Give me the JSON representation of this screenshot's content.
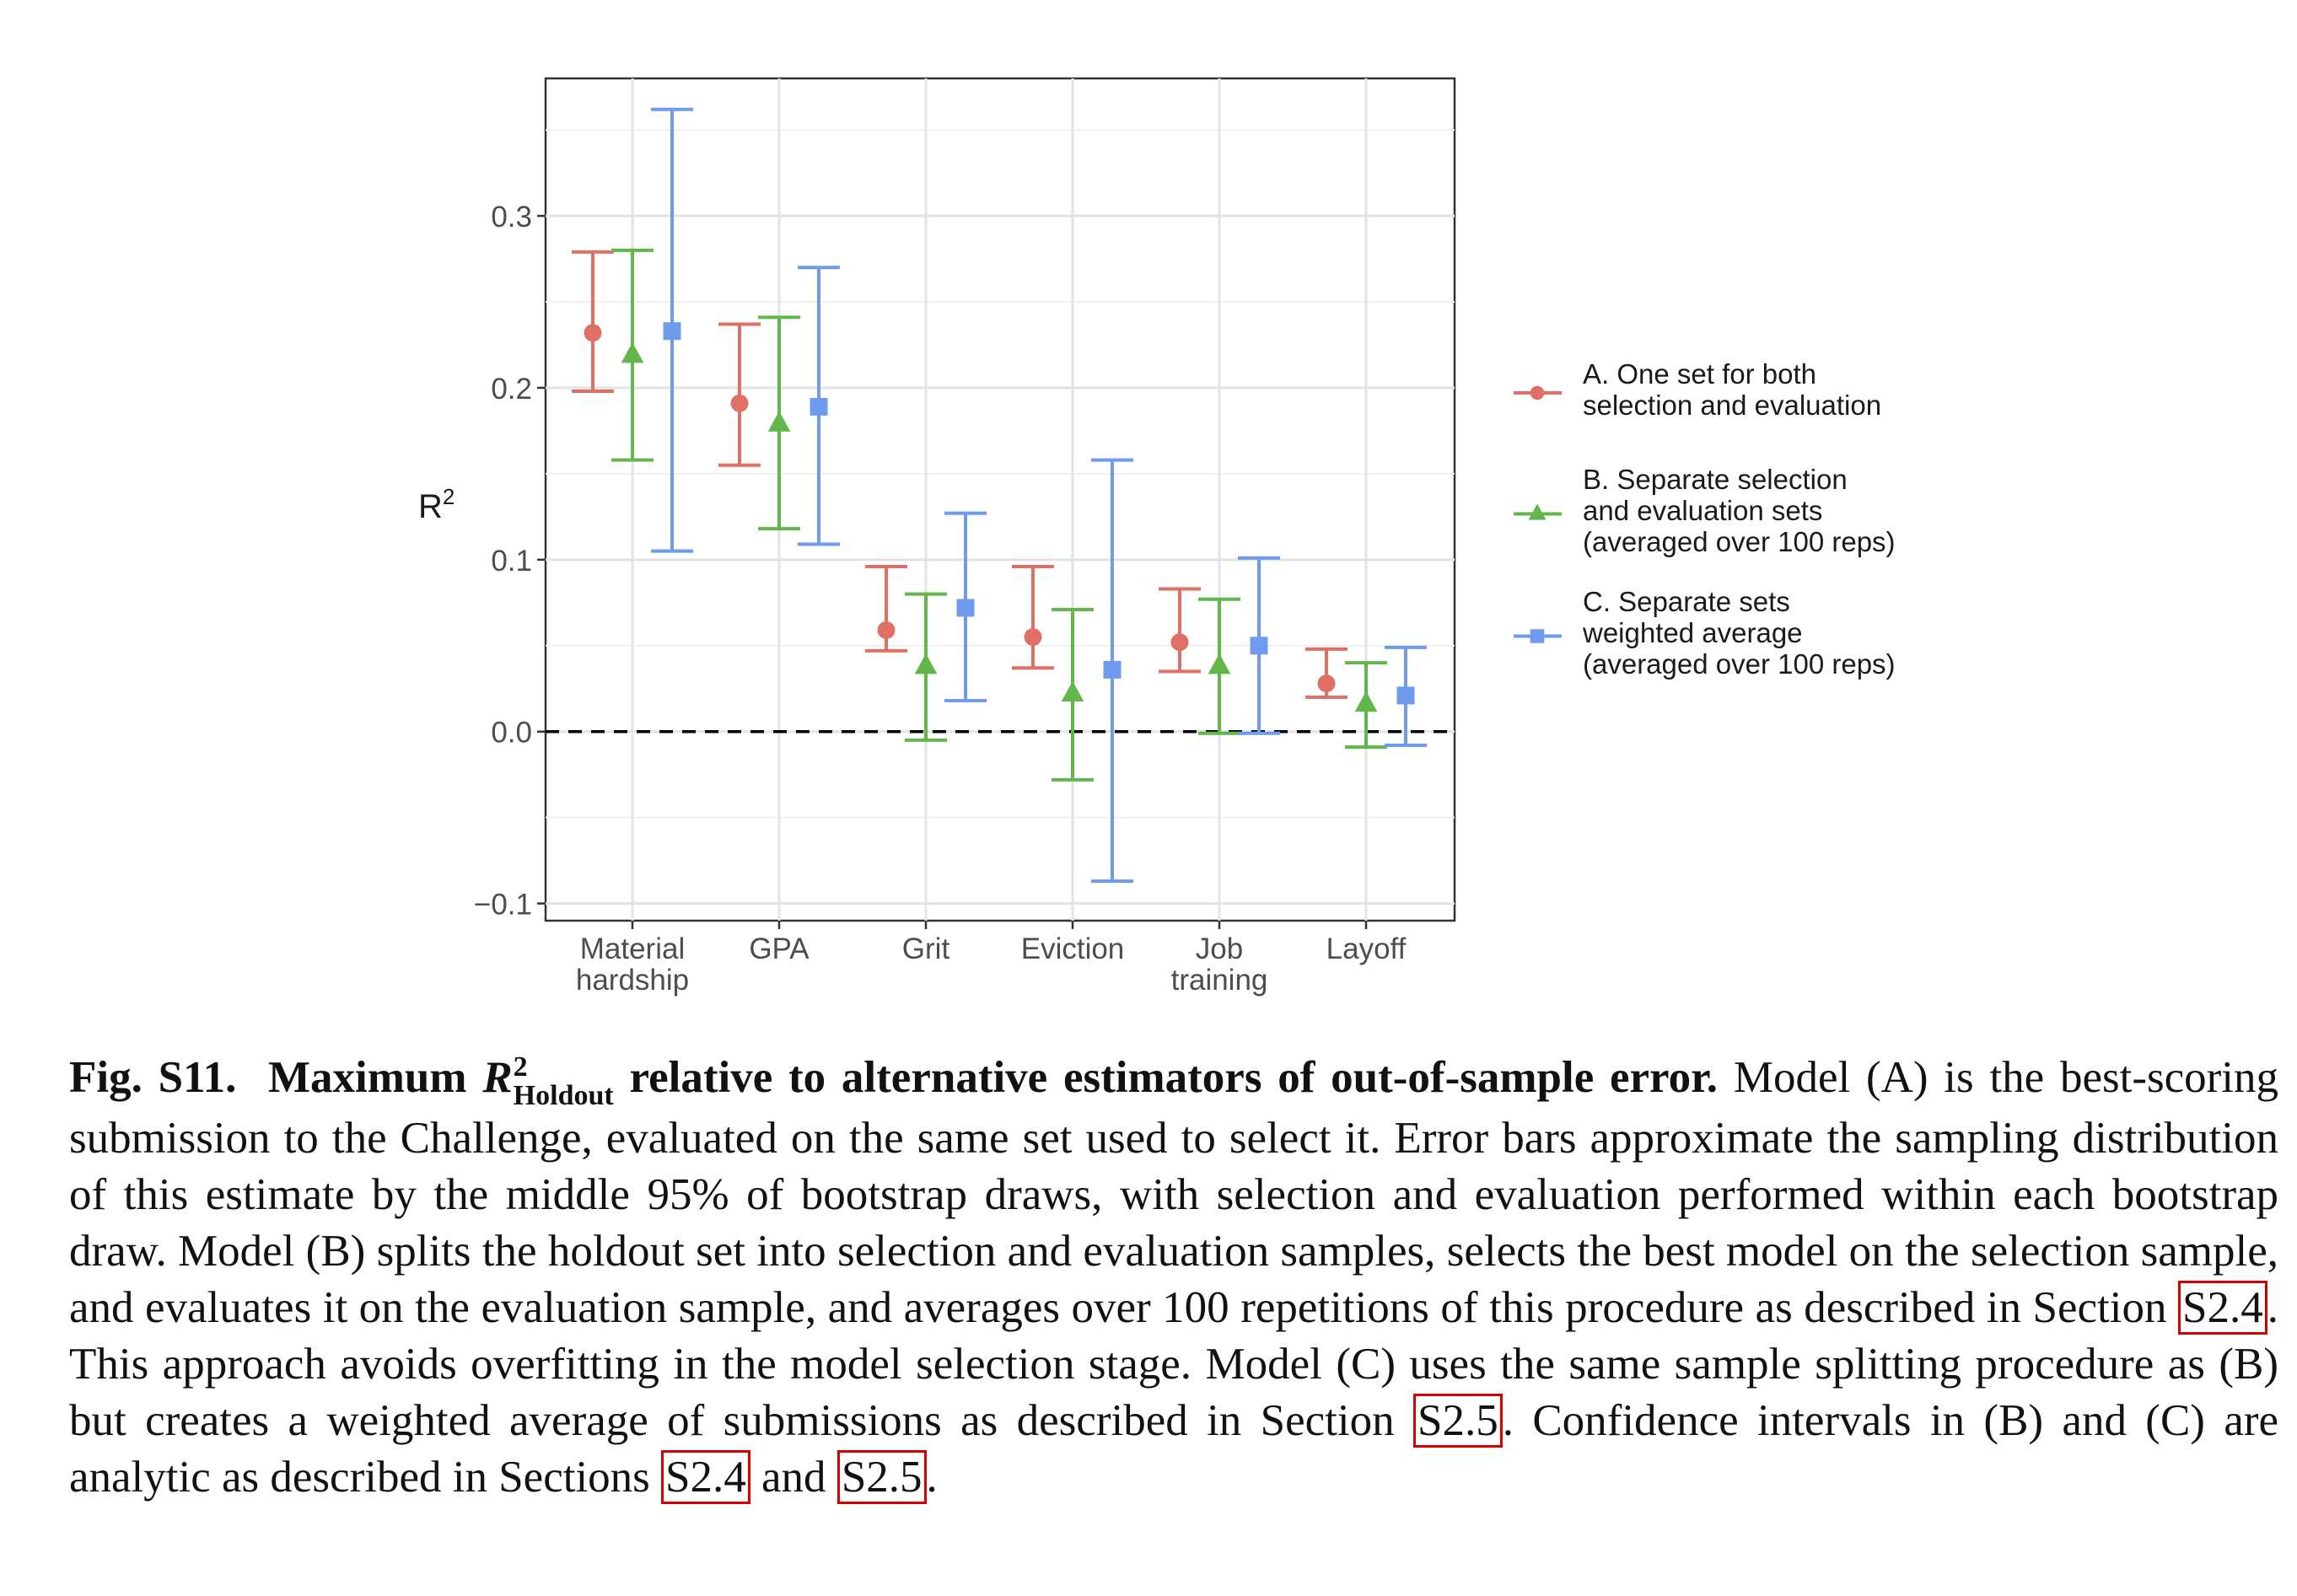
{
  "chart_data": {
    "type": "errorbar",
    "ylabel": "R²",
    "ylim": [
      -0.11,
      0.38
    ],
    "yticks": [
      -0.1,
      0.0,
      0.1,
      0.2,
      0.3
    ],
    "ytick_labels": [
      "−0.1",
      "0.0",
      "0.1",
      "0.2",
      "0.3"
    ],
    "reference_line": {
      "y": 0,
      "style": "dashed"
    },
    "grid": true,
    "legend_position": "right",
    "categories": [
      [
        "Material",
        "hardship"
      ],
      [
        "GPA"
      ],
      [
        "Grit"
      ],
      [
        "Eviction"
      ],
      [
        "Job",
        "training"
      ],
      [
        "Layoff"
      ]
    ],
    "series": [
      {
        "name_lines": [
          "A. One set for both",
          "selection and evaluation"
        ],
        "color": "#e06f66",
        "marker": "circle",
        "points": [
          {
            "y": 0.232,
            "lo": 0.198,
            "hi": 0.279
          },
          {
            "y": 0.191,
            "lo": 0.155,
            "hi": 0.237
          },
          {
            "y": 0.059,
            "lo": 0.047,
            "hi": 0.096
          },
          {
            "y": 0.055,
            "lo": 0.037,
            "hi": 0.096
          },
          {
            "y": 0.052,
            "lo": 0.035,
            "hi": 0.083
          },
          {
            "y": 0.028,
            "lo": 0.02,
            "hi": 0.048
          }
        ]
      },
      {
        "name_lines": [
          "B. Separate selection",
          "and evaluation sets",
          "(averaged over 100 reps)"
        ],
        "color": "#62b64a",
        "marker": "triangle",
        "points": [
          {
            "y": 0.219,
            "lo": 0.158,
            "hi": 0.28
          },
          {
            "y": 0.179,
            "lo": 0.118,
            "hi": 0.241
          },
          {
            "y": 0.038,
            "lo": -0.005,
            "hi": 0.08
          },
          {
            "y": 0.022,
            "lo": -0.028,
            "hi": 0.071
          },
          {
            "y": 0.038,
            "lo": -0.001,
            "hi": 0.077
          },
          {
            "y": 0.016,
            "lo": -0.009,
            "hi": 0.04
          }
        ]
      },
      {
        "name_lines": [
          "C. Separate sets",
          "weighted average",
          "(averaged over 100 reps)"
        ],
        "color": "#6f9bef",
        "marker": "square",
        "points": [
          {
            "y": 0.233,
            "lo": 0.105,
            "hi": 0.362
          },
          {
            "y": 0.189,
            "lo": 0.109,
            "hi": 0.27
          },
          {
            "y": 0.072,
            "lo": 0.018,
            "hi": 0.127
          },
          {
            "y": 0.036,
            "lo": -0.087,
            "hi": 0.158
          },
          {
            "y": 0.05,
            "lo": -0.001,
            "hi": 0.101
          },
          {
            "y": 0.021,
            "lo": -0.008,
            "hi": 0.049
          }
        ]
      }
    ]
  },
  "caption": {
    "figure_label": "Fig. S11.",
    "title_prefix": "Maximum",
    "title_symbol": "R",
    "title_sup": "2",
    "title_sub": "Holdout",
    "title_suffix": "relative to alternative estimators of out-of-sample error.",
    "body_1": "Model (A) is the best-scoring submission to the Challenge, evaluated on the same set used to select it. Error bars approximate the sampling distribution of this estimate by the middle 95% of bootstrap draws, with selection and evaluation performed within each bootstrap draw. Model (B) splits the holdout set into selection and evaluation samples, selects the best model on the selection sample, and evaluates it on the evaluation sample, and averages over 100 repetitions of this procedure as described in Section",
    "ref_1": "S2.4",
    "body_2": ". This approach avoids overfitting in the model selection stage. Model (C) uses the same sample splitting procedure as (B) but creates a weighted average of submissions as described in Section",
    "ref_2": "S2.5",
    "body_3": ". Confidence intervals in (B) and (C) are analytic as described in Sections",
    "ref_3": "S2.4",
    "body_4": "and",
    "ref_4": "S2.5",
    "body_5": "."
  }
}
